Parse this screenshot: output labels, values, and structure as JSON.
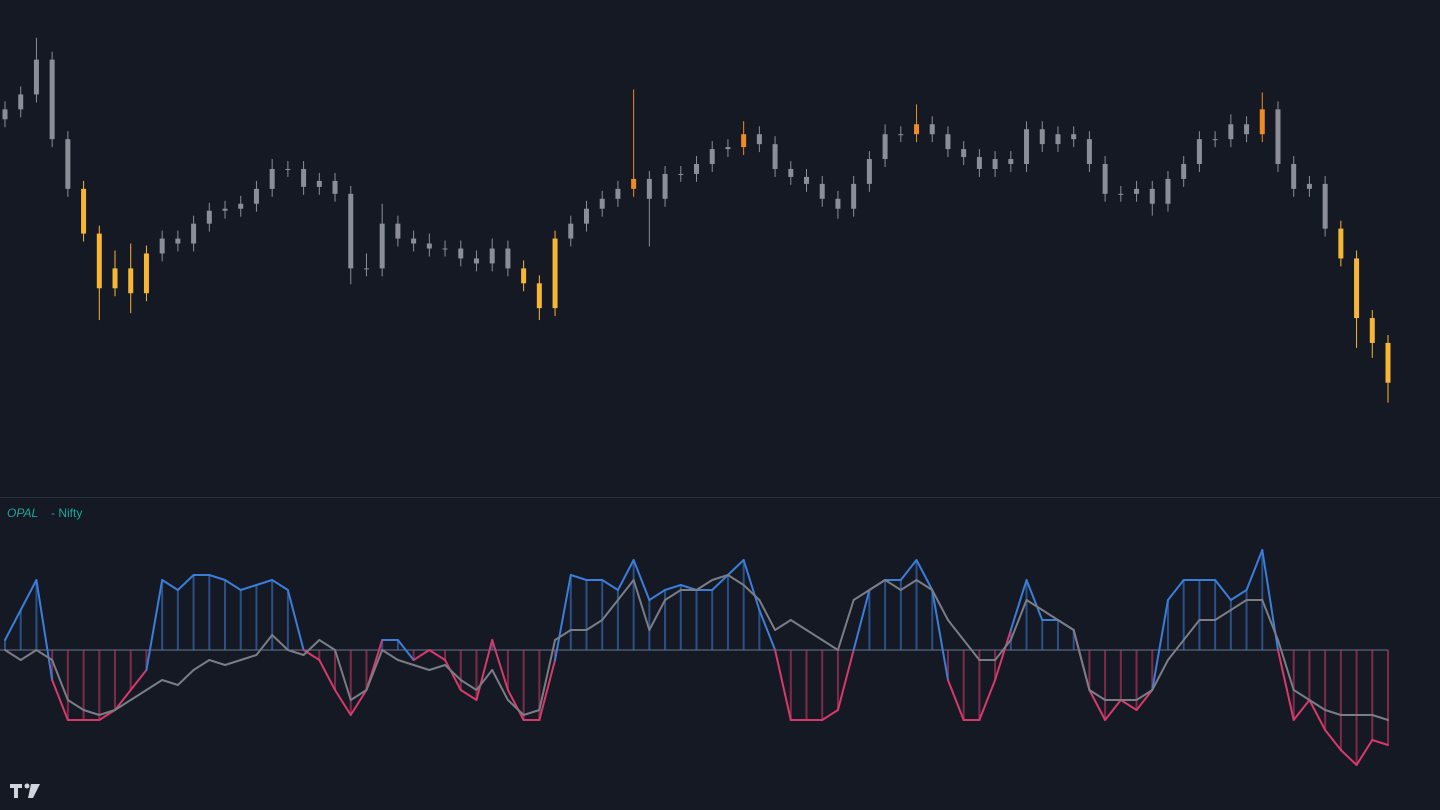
{
  "chart_data": [
    {
      "type": "candlestick",
      "categories": [
        null,
        null,
        null,
        null,
        null,
        null,
        null,
        null,
        null,
        null,
        null,
        null,
        null,
        null,
        null,
        null,
        null,
        null,
        null,
        null,
        null,
        null,
        null,
        null,
        null,
        null,
        null,
        null,
        null,
        null,
        null,
        null,
        null,
        null,
        null,
        null,
        null,
        null,
        null,
        null,
        null,
        null,
        null,
        null,
        null,
        null,
        null,
        null,
        null,
        null,
        null,
        null,
        null,
        null,
        null,
        null,
        null,
        null,
        null,
        null,
        null,
        null,
        null,
        null,
        null,
        null,
        null,
        null,
        null,
        null,
        null,
        null,
        null,
        null,
        null,
        null,
        null,
        null,
        null,
        null,
        null,
        null,
        null,
        null,
        null,
        null,
        null,
        null,
        null
      ],
      "open": [
        380,
        390,
        405,
        440,
        360,
        310,
        265,
        210,
        230,
        205,
        245,
        260,
        255,
        275,
        288,
        290,
        295,
        310,
        330,
        330,
        312,
        318,
        305,
        230,
        230,
        275,
        260,
        255,
        250,
        250,
        240,
        235,
        250,
        230,
        215,
        190,
        260,
        275,
        290,
        300,
        310,
        320,
        300,
        325,
        325,
        335,
        350,
        352,
        365,
        355,
        330,
        322,
        315,
        300,
        290,
        315,
        340,
        365,
        365,
        375,
        365,
        350,
        342,
        330,
        340,
        335,
        370,
        355,
        365,
        360,
        335,
        305,
        305,
        310,
        295,
        320,
        335,
        360,
        360,
        375,
        365,
        390,
        335,
        310,
        315,
        270,
        240,
        180,
        155
      ],
      "high": [
        398,
        413,
        462,
        448,
        368,
        318,
        273,
        248,
        255,
        253,
        268,
        268,
        283,
        296,
        298,
        303,
        318,
        340,
        338,
        338,
        326,
        326,
        313,
        245,
        295,
        283,
        268,
        265,
        258,
        258,
        248,
        260,
        258,
        238,
        223,
        268,
        283,
        298,
        308,
        318,
        410,
        328,
        333,
        333,
        343,
        358,
        360,
        378,
        373,
        363,
        338,
        330,
        323,
        308,
        323,
        348,
        375,
        373,
        395,
        383,
        373,
        358,
        350,
        348,
        348,
        378,
        378,
        373,
        373,
        368,
        343,
        313,
        318,
        318,
        328,
        343,
        368,
        368,
        385,
        383,
        407,
        398,
        343,
        323,
        323,
        278,
        248,
        188,
        163
      ],
      "low": [
        372,
        382,
        397,
        352,
        302,
        257,
        178,
        202,
        185,
        197,
        237,
        247,
        247,
        267,
        280,
        282,
        287,
        302,
        322,
        304,
        304,
        297,
        214,
        222,
        222,
        252,
        247,
        242,
        242,
        232,
        227,
        227,
        222,
        207,
        178,
        182,
        252,
        267,
        282,
        292,
        302,
        252,
        292,
        317,
        317,
        327,
        342,
        344,
        347,
        322,
        314,
        307,
        292,
        280,
        282,
        307,
        332,
        357,
        357,
        357,
        342,
        334,
        322,
        322,
        327,
        327,
        347,
        347,
        352,
        327,
        297,
        297,
        297,
        283,
        287,
        312,
        327,
        352,
        352,
        357,
        357,
        327,
        302,
        302,
        262,
        232,
        150,
        140,
        95
      ],
      "close": [
        390,
        405,
        440,
        360,
        310,
        265,
        210,
        230,
        205,
        245,
        260,
        255,
        275,
        288,
        290,
        295,
        310,
        330,
        330,
        312,
        318,
        305,
        230,
        230,
        275,
        260,
        255,
        250,
        250,
        240,
        235,
        250,
        230,
        215,
        190,
        260,
        275,
        290,
        300,
        310,
        320,
        300,
        325,
        325,
        335,
        350,
        352,
        365,
        355,
        330,
        322,
        315,
        300,
        290,
        315,
        340,
        365,
        365,
        375,
        365,
        350,
        342,
        330,
        340,
        335,
        370,
        355,
        365,
        360,
        335,
        305,
        305,
        310,
        295,
        320,
        335,
        360,
        360,
        375,
        365,
        390,
        335,
        310,
        315,
        270,
        240,
        180,
        155,
        115
      ],
      "colors": [
        "#8b8e96",
        "#8b8e96",
        "#8b8e96",
        "#8b8e96",
        "#8b8e96",
        "#f7b733",
        "#f7b733",
        "#f7b733",
        "#f7b733",
        "#f7b733",
        "#8b8e96",
        "#8b8e96",
        "#8b8e96",
        "#8b8e96",
        "#8b8e96",
        "#8b8e96",
        "#8b8e96",
        "#8b8e96",
        "#8b8e96",
        "#8b8e96",
        "#8b8e96",
        "#8b8e96",
        "#8b8e96",
        "#8b8e96",
        "#8b8e96",
        "#8b8e96",
        "#8b8e96",
        "#8b8e96",
        "#8b8e96",
        "#8b8e96",
        "#8b8e96",
        "#8b8e96",
        "#8b8e96",
        "#f7b733",
        "#f7b733",
        "#f7b733",
        "#8b8e96",
        "#8b8e96",
        "#8b8e96",
        "#8b8e96",
        "#f08a24",
        "#8b8e96",
        "#8b8e96",
        "#8b8e96",
        "#8b8e96",
        "#8b8e96",
        "#8b8e96",
        "#f08a24",
        "#8b8e96",
        "#8b8e96",
        "#8b8e96",
        "#8b8e96",
        "#8b8e96",
        "#8b8e96",
        "#8b8e96",
        "#8b8e96",
        "#8b8e96",
        "#8b8e96",
        "#f08a24",
        "#8b8e96",
        "#8b8e96",
        "#8b8e96",
        "#8b8e96",
        "#8b8e96",
        "#8b8e96",
        "#8b8e96",
        "#8b8e96",
        "#8b8e96",
        "#8b8e96",
        "#8b8e96",
        "#8b8e96",
        "#8b8e96",
        "#8b8e96",
        "#8b8e96",
        "#8b8e96",
        "#8b8e96",
        "#8b8e96",
        "#8b8e96",
        "#8b8e96",
        "#8b8e96",
        "#f08a24",
        "#8b8e96",
        "#8b8e96",
        "#8b8e96",
        "#8b8e96",
        "#f7b733",
        "#f7b733",
        "#f7b733",
        "#f7b733"
      ],
      "ylim": [
        0,
        500
      ]
    },
    {
      "type": "line",
      "title": "OPAL",
      "subtitle": "- Nifty",
      "categories": [
        null,
        null,
        null,
        null,
        null,
        null,
        null,
        null,
        null,
        null,
        null,
        null,
        null,
        null,
        null,
        null,
        null,
        null,
        null,
        null,
        null,
        null,
        null,
        null,
        null,
        null,
        null,
        null,
        null,
        null,
        null,
        null,
        null,
        null,
        null,
        null,
        null,
        null,
        null,
        null,
        null,
        null,
        null,
        null,
        null,
        null,
        null,
        null,
        null,
        null,
        null,
        null,
        null,
        null,
        null,
        null,
        null,
        null,
        null,
        null,
        null,
        null,
        null,
        null,
        null,
        null,
        null,
        null,
        null,
        null,
        null,
        null,
        null,
        null,
        null,
        null,
        null,
        null,
        null,
        null,
        null,
        null,
        null,
        null,
        null,
        null,
        null,
        null,
        null
      ],
      "series": [
        {
          "color": "#3b7dd8",
          "negative_color": "#d63a6b",
          "values": [
            10,
            40,
            70,
            -30,
            -70,
            -70,
            -70,
            -60,
            -40,
            -20,
            70,
            60,
            75,
            75,
            70,
            60,
            65,
            70,
            60,
            0,
            -10,
            -40,
            -65,
            -40,
            10,
            10,
            -10,
            0,
            -10,
            -40,
            -50,
            10,
            -40,
            -70,
            -70,
            -10,
            75,
            70,
            70,
            60,
            90,
            50,
            60,
            65,
            60,
            60,
            75,
            90,
            40,
            0,
            -70,
            -70,
            -70,
            -60,
            0,
            60,
            70,
            70,
            90,
            60,
            -30,
            -70,
            -70,
            -30,
            20,
            70,
            30,
            30,
            20,
            -40,
            -70,
            -50,
            -60,
            -40,
            50,
            70,
            70,
            70,
            50,
            60,
            100,
            0,
            -70,
            -50,
            -80,
            -100,
            -115,
            -90,
            -95
          ]
        },
        {
          "color": "#7a7d85",
          "values": [
            0,
            -10,
            0,
            -10,
            -50,
            -60,
            -65,
            -60,
            -50,
            -40,
            -30,
            -35,
            -20,
            -10,
            -15,
            -10,
            -5,
            15,
            0,
            -5,
            10,
            0,
            -50,
            -40,
            0,
            -10,
            -15,
            -20,
            -15,
            -30,
            -40,
            -20,
            -50,
            -65,
            -60,
            10,
            20,
            20,
            30,
            50,
            70,
            20,
            50,
            60,
            60,
            70,
            75,
            65,
            50,
            20,
            30,
            20,
            10,
            0,
            50,
            60,
            70,
            60,
            70,
            60,
            30,
            10,
            -10,
            -10,
            10,
            50,
            40,
            30,
            20,
            -40,
            -50,
            -50,
            -50,
            -40,
            -10,
            10,
            30,
            30,
            40,
            50,
            50,
            10,
            -40,
            -50,
            -60,
            -65,
            -65,
            -65,
            -70
          ]
        }
      ],
      "ylim": [
        -160,
        152
      ]
    }
  ]
}
